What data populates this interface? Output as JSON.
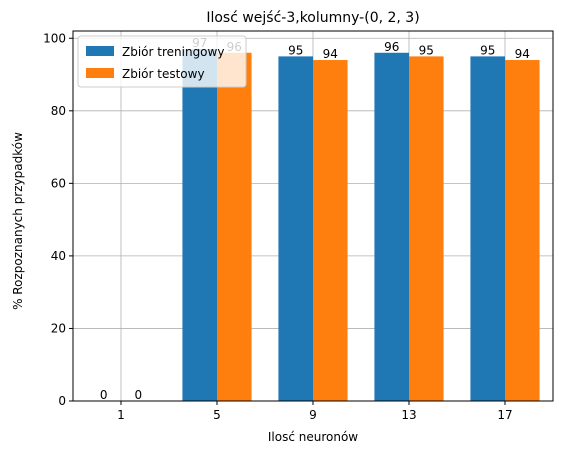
{
  "chart_data": {
    "type": "bar",
    "title": "Ilosć wejść-3,kolumny-(0, 2, 3)",
    "xlabel": "Ilosć neuronów",
    "ylabel": "% Rozpoznanych przypadków",
    "categories": [
      "1",
      "5",
      "9",
      "13",
      "17"
    ],
    "series": [
      {
        "name": "Zbiór treningowy",
        "color": "#1f77b4",
        "values": [
          0,
          97,
          95,
          96,
          95
        ],
        "labels": [
          "0",
          "97",
          "95",
          "96",
          "95"
        ]
      },
      {
        "name": "Zbiór testowy",
        "color": "#ff7f0e",
        "values": [
          0,
          96,
          94,
          95,
          94
        ],
        "labels": [
          "0",
          "96",
          "94",
          "95",
          "94"
        ]
      }
    ],
    "ylim": [
      0,
      102
    ],
    "yticks": [
      0,
      20,
      40,
      60,
      80,
      100
    ],
    "grid": true,
    "legend_position": "upper-left"
  }
}
